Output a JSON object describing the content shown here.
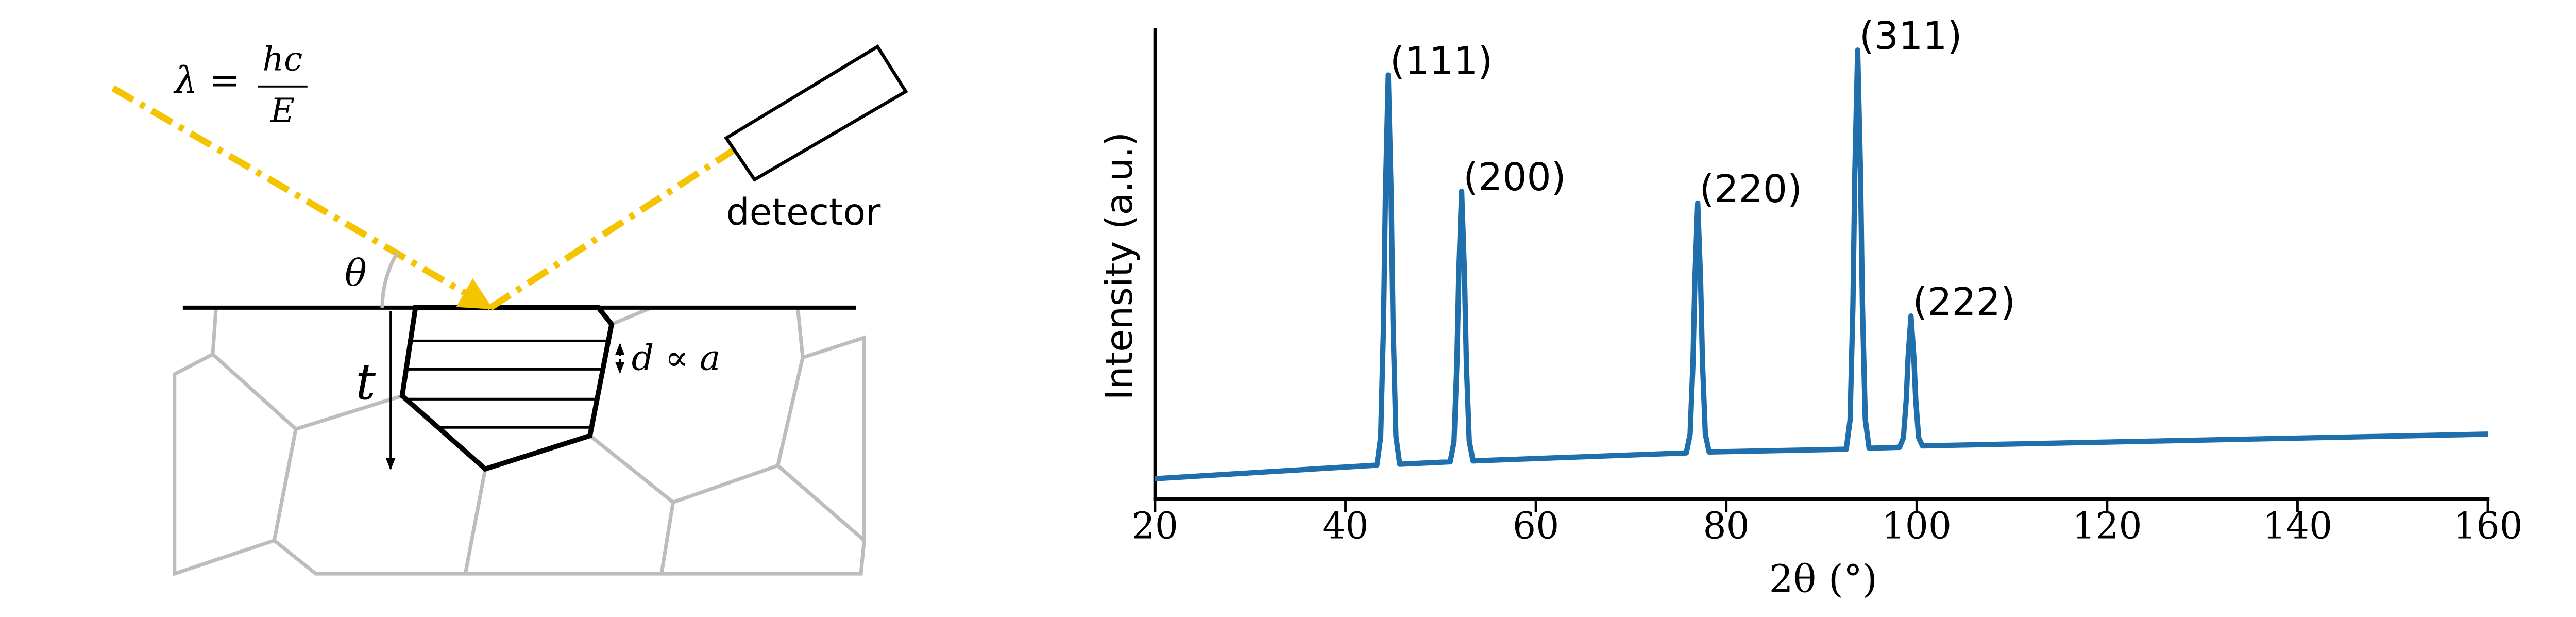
{
  "diagram": {
    "formula": {
      "lhs": "λ =",
      "numerator": "hc",
      "denominator": "E"
    },
    "angle_label": "θ",
    "thickness_label": "t",
    "spacing_label": "d ∝ a",
    "detector_label": "detector"
  },
  "chart_data": {
    "type": "line",
    "color": "#1f6fad",
    "x_label": "2θ (°)",
    "y_label": "Intensity (a.u.)",
    "x": [
      20,
      43.3,
      43.7,
      44.0,
      44.2,
      44.5,
      44.8,
      45.0,
      45.3,
      45.7,
      51.0,
      51.4,
      51.7,
      51.9,
      52.2,
      52.5,
      52.7,
      53.0,
      53.4,
      75.8,
      76.2,
      76.5,
      76.7,
      77.0,
      77.3,
      77.5,
      77.8,
      78.2,
      92.6,
      93.0,
      93.3,
      93.5,
      93.8,
      94.1,
      94.3,
      94.6,
      95.0,
      96.5,
      98.2,
      98.6,
      98.9,
      99.1,
      99.4,
      99.7,
      99.9,
      100.2,
      100.6,
      160
    ],
    "values": [
      0.043,
      0.072,
      0.132,
      0.372,
      0.647,
      0.904,
      0.647,
      0.374,
      0.134,
      0.074,
      0.079,
      0.122,
      0.288,
      0.477,
      0.656,
      0.478,
      0.289,
      0.123,
      0.081,
      0.098,
      0.138,
      0.29,
      0.466,
      0.631,
      0.466,
      0.291,
      0.138,
      0.1,
      0.106,
      0.168,
      0.412,
      0.693,
      0.957,
      0.693,
      0.413,
      0.169,
      0.108,
      0.109,
      0.11,
      0.13,
      0.211,
      0.303,
      0.39,
      0.303,
      0.212,
      0.131,
      0.113,
      0.138
    ],
    "xlim": [
      20,
      160
    ],
    "xticks": [
      20,
      40,
      60,
      80,
      100,
      120,
      140,
      160
    ],
    "ylim": [
      0,
      1
    ],
    "annotations": [
      {
        "text": "(111)",
        "x": 44.5,
        "y": 0.904
      },
      {
        "text": "(200)",
        "x": 52.2,
        "y": 0.656
      },
      {
        "text": "(220)",
        "x": 77.0,
        "y": 0.631
      },
      {
        "text": "(311)",
        "x": 93.8,
        "y": 0.957
      },
      {
        "text": "(222)",
        "x": 99.4,
        "y": 0.39
      }
    ]
  }
}
